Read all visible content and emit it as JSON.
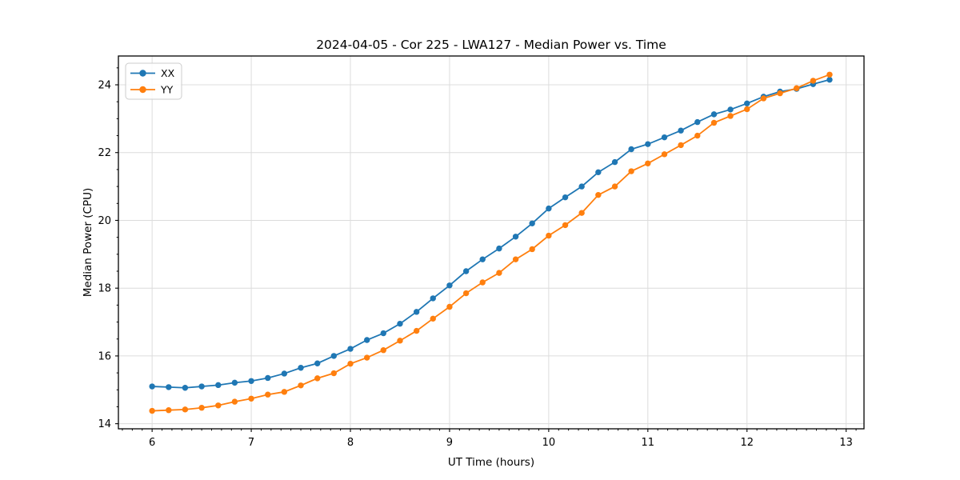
{
  "chart_data": {
    "type": "line",
    "title": "2024-04-05 - Cor 225 - LWA127 - Median Power vs. Time",
    "xlabel": "UT Time (hours)",
    "ylabel": "Median Power (CPU)",
    "xlim": [
      5.66,
      13.18
    ],
    "ylim": [
      13.85,
      24.85
    ],
    "x_ticks": [
      6,
      7,
      8,
      9,
      10,
      11,
      12,
      13
    ],
    "y_ticks": [
      14,
      16,
      18,
      20,
      22,
      24
    ],
    "x_minor_step": 0.1,
    "y_minor_step": 0.5,
    "grid": true,
    "grid_color": "#dcdcdc",
    "legend_position": "upper-left",
    "x": [
      6.0,
      6.167,
      6.333,
      6.5,
      6.667,
      6.833,
      7.0,
      7.167,
      7.333,
      7.5,
      7.667,
      7.833,
      8.0,
      8.167,
      8.333,
      8.5,
      8.667,
      8.833,
      9.0,
      9.167,
      9.333,
      9.5,
      9.667,
      9.833,
      10.0,
      10.167,
      10.333,
      10.5,
      10.667,
      10.833,
      11.0,
      11.167,
      11.333,
      11.5,
      11.667,
      11.833,
      12.0,
      12.167,
      12.333,
      12.5,
      12.667,
      12.833
    ],
    "series": [
      {
        "name": "XX",
        "color": "#1f77b4",
        "values": [
          15.1,
          15.08,
          15.06,
          15.1,
          15.14,
          15.21,
          15.26,
          15.35,
          15.48,
          15.65,
          15.78,
          16.0,
          16.21,
          16.47,
          16.67,
          16.95,
          17.3,
          17.7,
          18.08,
          18.5,
          18.85,
          19.17,
          19.52,
          19.91,
          20.35,
          20.68,
          21.0,
          21.42,
          21.72,
          22.1,
          22.25,
          22.45,
          22.65,
          22.9,
          23.13,
          23.27,
          23.45,
          23.65,
          23.8,
          23.88,
          24.02,
          24.15
        ]
      },
      {
        "name": "YY",
        "color": "#ff7f0e",
        "values": [
          14.38,
          14.4,
          14.42,
          14.47,
          14.54,
          14.65,
          14.74,
          14.86,
          14.94,
          15.13,
          15.34,
          15.49,
          15.77,
          15.95,
          16.17,
          16.45,
          16.74,
          17.1,
          17.45,
          17.85,
          18.17,
          18.45,
          18.85,
          19.15,
          19.55,
          19.86,
          20.22,
          20.75,
          21.0,
          21.45,
          21.68,
          21.95,
          22.22,
          22.5,
          22.88,
          23.08,
          23.28,
          23.6,
          23.75,
          23.9,
          24.12,
          24.3
        ]
      }
    ]
  }
}
